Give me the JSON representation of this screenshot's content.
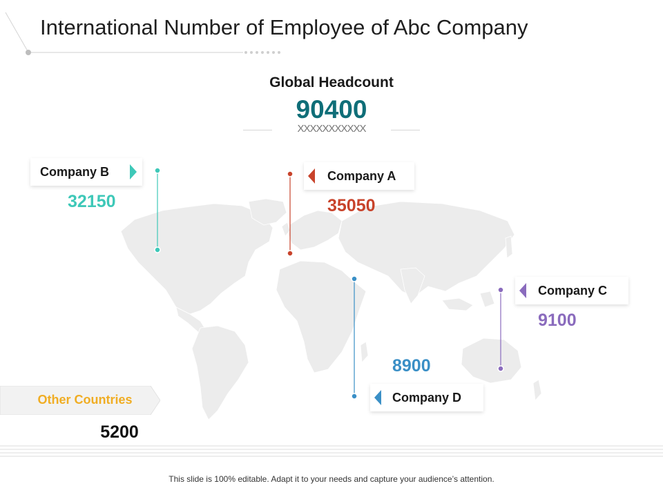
{
  "slide": {
    "title": "International Number of Employee of Abc Company",
    "footer": "This slide is 100% editable. Adapt it to your needs and capture your audience’s attention."
  },
  "headcount": {
    "label": "Global Headcount",
    "value": "90400",
    "placeholder": "XXXXXXXXXXX",
    "color": "#0f6e78"
  },
  "companies": [
    {
      "name": "Company A",
      "value": "35050",
      "color": "#c8432b"
    },
    {
      "name": "Company B",
      "value": "32150",
      "color": "#3ec8b8"
    },
    {
      "name": "Company C",
      "value": "9100",
      "color": "#8a6bbd"
    },
    {
      "name": "Company D",
      "value": "8900",
      "color": "#3a8fc6"
    }
  ],
  "other": {
    "name": "Other Countries",
    "value": "5200",
    "color": "#f0ad23"
  }
}
